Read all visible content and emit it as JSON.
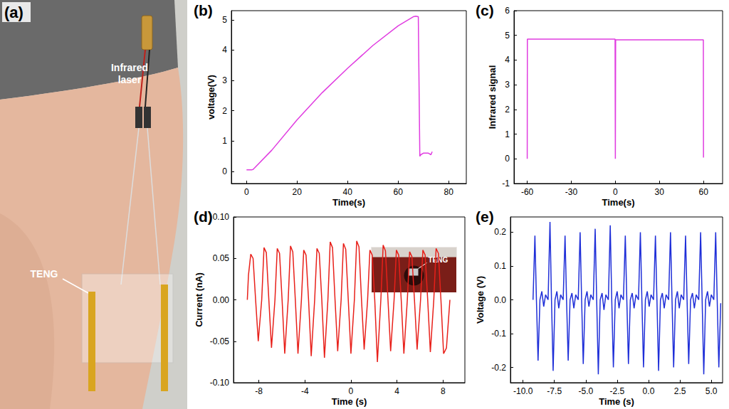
{
  "photo": {
    "panel_label": "(a)",
    "annotations": [
      "Infrared laser",
      "TENG"
    ]
  },
  "chart_data": [
    {
      "panel_label": "(b)",
      "type": "line",
      "x_label": "Time(s)",
      "y_label": "voltage(V)",
      "color": "#e03ce0",
      "grid": false,
      "x": [
        0,
        1,
        2,
        2.5,
        3,
        10,
        20,
        30,
        40,
        50,
        60,
        66,
        67,
        68,
        68.6,
        69,
        70,
        72,
        73,
        73.5
      ],
      "values": [
        0.05,
        0.05,
        0.05,
        0.06,
        0.1,
        0.7,
        1.7,
        2.6,
        3.4,
        4.15,
        4.8,
        5.1,
        5.12,
        5.1,
        0.5,
        0.55,
        0.6,
        0.6,
        0.55,
        0.65
      ],
      "xlim": [
        -6,
        87
      ],
      "xticks": [
        0,
        20,
        40,
        60,
        80
      ],
      "ylim": [
        -0.4,
        5.3
      ],
      "yticks": [
        0,
        1,
        2,
        3,
        4,
        5
      ]
    },
    {
      "panel_label": "(c)",
      "type": "line",
      "x_label": "Time(s)",
      "y_label": "Infrared signal",
      "color": "#e03ce0",
      "grid": false,
      "x": [
        -60,
        -59.9,
        -30,
        -0.2,
        0,
        0.2,
        30,
        59.9,
        60
      ],
      "values": [
        0,
        4.85,
        4.85,
        4.85,
        0,
        4.82,
        4.82,
        4.82,
        0.05
      ],
      "xlim": [
        -69,
        73
      ],
      "xticks": [
        -60,
        -30,
        0,
        30,
        60
      ],
      "ylim": [
        -1,
        6
      ],
      "yticks": [
        -1,
        0,
        1,
        2,
        3,
        4,
        5,
        6
      ]
    },
    {
      "panel_label": "(d)",
      "type": "line",
      "x_label": "Time (s)",
      "y_label": "Current (nA)",
      "color": "#e8201a",
      "grid": false,
      "annotations": [
        "TENG"
      ],
      "x": [
        -9.0,
        -8.9,
        -8.7,
        -8.5,
        -8.28,
        -8.05,
        -7.75,
        -7.55,
        -7.35,
        -7.13,
        -6.9,
        -6.6,
        -6.4,
        -6.2,
        -5.98,
        -5.75,
        -5.45,
        -5.25,
        -5.05,
        -4.83,
        -4.6,
        -4.3,
        -4.1,
        -3.9,
        -3.68,
        -3.45,
        -3.15,
        -2.95,
        -2.75,
        -2.53,
        -2.3,
        -2.0,
        -1.8,
        -1.6,
        -1.38,
        -1.15,
        -0.85,
        -0.65,
        -0.45,
        -0.23,
        0,
        0.3,
        0.5,
        0.7,
        0.92,
        1.15,
        1.45,
        1.65,
        1.85,
        2.07,
        2.3,
        2.6,
        2.8,
        3.0,
        3.22,
        3.45,
        3.75,
        3.95,
        4.15,
        4.37,
        4.6,
        4.9,
        5.1,
        5.3,
        5.52,
        5.75,
        6.05,
        6.25,
        6.45,
        6.67,
        6.9,
        7.2,
        7.4,
        7.6,
        7.82,
        8.05,
        8.3,
        8.6
      ],
      "values": [
        0,
        0.03,
        0.055,
        0.05,
        0,
        -0.05,
        0,
        0.063,
        0.057,
        0,
        -0.058,
        0,
        0.062,
        0.056,
        0,
        -0.065,
        0,
        0.065,
        0.058,
        0,
        -0.065,
        0,
        0.06,
        0.054,
        0,
        -0.068,
        0,
        0.062,
        0.056,
        0,
        -0.07,
        0,
        0.07,
        0.063,
        0,
        -0.062,
        0,
        0.068,
        0.061,
        0,
        -0.065,
        0,
        0.071,
        0.064,
        0,
        -0.06,
        0,
        0.06,
        0.054,
        0,
        -0.075,
        0,
        0.066,
        0.059,
        0,
        -0.062,
        0,
        0.06,
        0.054,
        0,
        -0.065,
        0,
        0.058,
        0.052,
        0,
        -0.06,
        0,
        0.06,
        0.054,
        0,
        -0.063,
        0,
        0.062,
        0.056,
        0,
        -0.065,
        -0.058,
        0
      ],
      "xlim": [
        -10.2,
        9.9
      ],
      "xticks": [
        -8,
        -4,
        0,
        4,
        8
      ],
      "ylim": [
        -0.1,
        0.1
      ],
      "yticks": [
        {
          "value": -0.1,
          "label": "-0.10"
        },
        -0.05,
        {
          "value": 0,
          "label": "0.00"
        },
        0.05,
        {
          "value": 0.1,
          "label": "0.10"
        }
      ]
    },
    {
      "panel_label": "(e)",
      "type": "line",
      "x_label": "Time (s)",
      "y_label": "Voltage (V)",
      "color": "#1f2fd8",
      "grid": false,
      "x": [
        -9.2,
        -9.05,
        -8.93,
        -8.8,
        -8.65,
        -8.5,
        -8.35,
        -8.2,
        -8.0,
        -7.85,
        -7.73,
        -7.6,
        -7.45,
        -7.3,
        -7.15,
        -7.0,
        -6.8,
        -6.65,
        -6.53,
        -6.4,
        -6.25,
        -6.1,
        -5.95,
        -5.8,
        -5.6,
        -5.45,
        -5.33,
        -5.2,
        -5.05,
        -4.9,
        -4.75,
        -4.6,
        -4.4,
        -4.25,
        -4.13,
        -4.0,
        -3.85,
        -3.7,
        -3.55,
        -3.4,
        -3.2,
        -3.05,
        -2.93,
        -2.8,
        -2.65,
        -2.5,
        -2.35,
        -2.2,
        -2.0,
        -1.85,
        -1.73,
        -1.6,
        -1.45,
        -1.3,
        -1.15,
        -1.0,
        -0.8,
        -0.65,
        -0.53,
        -0.4,
        -0.25,
        -0.1,
        0.05,
        0.2,
        0.4,
        0.55,
        0.67,
        0.8,
        0.95,
        1.1,
        1.25,
        1.4,
        1.6,
        1.75,
        1.87,
        2.0,
        2.15,
        2.3,
        2.45,
        2.6,
        2.8,
        2.95,
        3.07,
        3.2,
        3.35,
        3.5,
        3.65,
        3.8,
        4.0,
        4.15,
        4.27,
        4.4,
        4.55,
        4.7,
        4.85,
        5.0,
        5.2,
        5.35,
        5.47,
        5.6,
        5.75
      ],
      "values": [
        0,
        0.19,
        0,
        -0.18,
        0,
        0.025,
        -0.02,
        0.015,
        0,
        0.23,
        0,
        -0.21,
        0,
        0.025,
        -0.025,
        0.015,
        0,
        0.19,
        0,
        -0.18,
        0,
        0.02,
        -0.025,
        0.015,
        0,
        0.2,
        0,
        -0.19,
        0,
        0.025,
        -0.02,
        0.015,
        0,
        0.21,
        0,
        -0.22,
        0,
        0.02,
        -0.03,
        0.015,
        0,
        0.22,
        0,
        -0.2,
        0,
        0.025,
        -0.025,
        0.015,
        0,
        0.19,
        0,
        -0.19,
        0,
        0.02,
        -0.025,
        0.015,
        0,
        0.2,
        0,
        -0.2,
        0,
        0.025,
        -0.02,
        0.015,
        0,
        0.19,
        0,
        -0.21,
        0,
        0.02,
        -0.025,
        0.015,
        0,
        0.2,
        0,
        -0.2,
        0,
        0.025,
        -0.025,
        0.015,
        0,
        0.19,
        0,
        -0.19,
        0,
        0.02,
        -0.025,
        0.015,
        0,
        0.2,
        0,
        -0.22,
        0,
        0.025,
        -0.02,
        0.015,
        0,
        0.2,
        0,
        -0.2,
        -0.01
      ],
      "xlim": [
        -11,
        5.9
      ],
      "xticks": [
        {
          "value": -10,
          "label": "-10.0"
        },
        -7.5,
        {
          "value": -5,
          "label": "-5.0"
        },
        -2.5,
        {
          "value": 0,
          "label": "0.0"
        },
        2.5,
        {
          "value": 5,
          "label": "5.0"
        }
      ],
      "ylim": [
        -0.245,
        0.245
      ],
      "yticks": [
        -0.2,
        -0.1,
        {
          "value": 0,
          "label": "0.0"
        },
        0.1,
        0.2
      ]
    }
  ]
}
